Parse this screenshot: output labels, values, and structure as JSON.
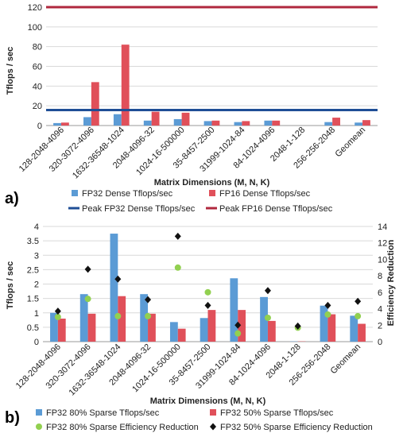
{
  "chart_data": [
    {
      "type": "bar",
      "panel_label": "a)",
      "categories": [
        "128-2048-4096",
        "320-3072-4096",
        "1632-36548-1024",
        "2048-4096-32",
        "1024-16-500000",
        "35-8457-2500",
        "31999-1024-84",
        "84-1024-4096",
        "2048-1-128",
        "256-256-2048",
        "Geomean"
      ],
      "series": [
        {
          "name": "FP32 Dense Tflops/sec",
          "color": "#5b9bd5",
          "values": [
            2.5,
            8.5,
            11.5,
            5,
            6.5,
            4.5,
            3.5,
            5,
            0,
            3.5,
            3
          ]
        },
        {
          "name": "FP16 Dense Tflops/sec",
          "color": "#e0505a",
          "values": [
            3,
            44,
            82,
            14,
            13,
            5,
            4.5,
            5,
            0,
            8,
            5.5
          ]
        }
      ],
      "reference_lines": [
        {
          "name": "Peak FP32 Dense Tflops/sec",
          "color": "#1f4e96",
          "value": 15.7
        },
        {
          "name": "Peak FP16 Dense Tflops/sec",
          "color": "#b0283e",
          "value": 120
        }
      ],
      "xlabel": "Matrix Dimensions  (M, N, K)",
      "ylabel": "Tflops / sec",
      "ylim": [
        0,
        120
      ],
      "yticks": [
        "0",
        "20",
        "40",
        "60",
        "80",
        "100",
        "120"
      ],
      "grid": true,
      "legend_position": "bottom"
    },
    {
      "type": "bar",
      "panel_label": "b)",
      "categories": [
        "128-2048-4096",
        "320-3072-4096",
        "1632-36548-1024",
        "2048-4096-32",
        "1024-16-500000",
        "35-8457-2500",
        "31999-1024-84",
        "84-1024-4096",
        "2048-1-128",
        "256-256-2048",
        "Geomean"
      ],
      "series": [
        {
          "name": "FP32 80% Sparse Tflops/sec",
          "color": "#5b9bd5",
          "values": [
            1.0,
            1.65,
            3.75,
            1.65,
            0.68,
            0.82,
            2.2,
            1.55,
            0.01,
            1.25,
            0.9
          ]
        },
        {
          "name": "FP32 50% Sparse Tflops/sec",
          "color": "#e0505a",
          "values": [
            0.8,
            0.97,
            1.58,
            0.97,
            0.45,
            1.1,
            1.1,
            0.72,
            0.01,
            0.95,
            0.62
          ]
        }
      ],
      "secondary_series": [
        {
          "name": "FP32 80% Sparse Efficiency Reduction",
          "color": "#92d050",
          "marker": "circle",
          "values": [
            3.0,
            5.2,
            3.1,
            3.1,
            9.0,
            6.0,
            1.0,
            2.9,
            1.7,
            3.3,
            3.1
          ]
        },
        {
          "name": "FP32 50% Sparse Efficiency Reduction",
          "color": "#111111",
          "marker": "diamond",
          "values": [
            3.7,
            8.8,
            7.6,
            5.1,
            12.8,
            4.4,
            2.0,
            6.2,
            1.9,
            4.4,
            4.9
          ]
        }
      ],
      "xlabel": "Matrix Dimensions  (M, N, K)",
      "ylabel": "Tflops / sec",
      "y2label": "Efficiency Reduction",
      "ylim": [
        0,
        4
      ],
      "y2lim": [
        0,
        14
      ],
      "yticks": [
        "0",
        "0.5",
        "1",
        "1.5",
        "2",
        "2.5",
        "3",
        "3.5",
        "4"
      ],
      "y2ticks": [
        "0",
        "2",
        "4",
        "6",
        "8",
        "10",
        "12",
        "14"
      ],
      "grid": true,
      "legend_position": "bottom"
    }
  ]
}
